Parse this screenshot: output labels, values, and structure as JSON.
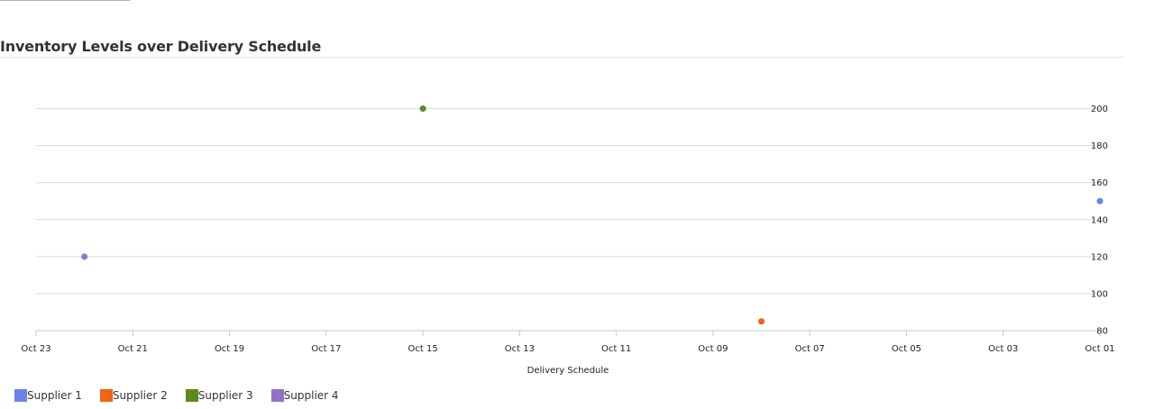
{
  "chart_data": {
    "type": "scatter",
    "title": "Inventory Levels over Delivery Schedule",
    "xlabel": "Delivery Schedule",
    "ylabel": "",
    "x_axis": {
      "kind": "date",
      "reversed": true,
      "range": [
        "2023-10-23",
        "2023-10-01"
      ],
      "ticks": [
        "Oct 23",
        "Oct 21",
        "Oct 19",
        "Oct 17",
        "Oct 15",
        "Oct 13",
        "Oct 11",
        "Oct 09",
        "Oct 07",
        "Oct 05",
        "Oct 03",
        "Oct 01"
      ]
    },
    "y_axis": {
      "position": "right",
      "range": [
        80,
        210
      ],
      "ticks": [
        80,
        100,
        120,
        140,
        160,
        180,
        200
      ]
    },
    "grid": "horizontal",
    "legend_position": "bottom-left",
    "series": [
      {
        "name": "Supplier 1",
        "color": "#6b83ea",
        "points": [
          {
            "x": "2023-10-01",
            "y": 150
          }
        ]
      },
      {
        "name": "Supplier 2",
        "color": "#f06418",
        "points": [
          {
            "x": "2023-10-08",
            "y": 85
          }
        ]
      },
      {
        "name": "Supplier 3",
        "color": "#5a8a1e",
        "points": [
          {
            "x": "2023-10-15",
            "y": 200
          }
        ]
      },
      {
        "name": "Supplier 4",
        "color": "#9274c7",
        "points": [
          {
            "x": "2023-10-22",
            "y": 120
          }
        ]
      }
    ]
  }
}
